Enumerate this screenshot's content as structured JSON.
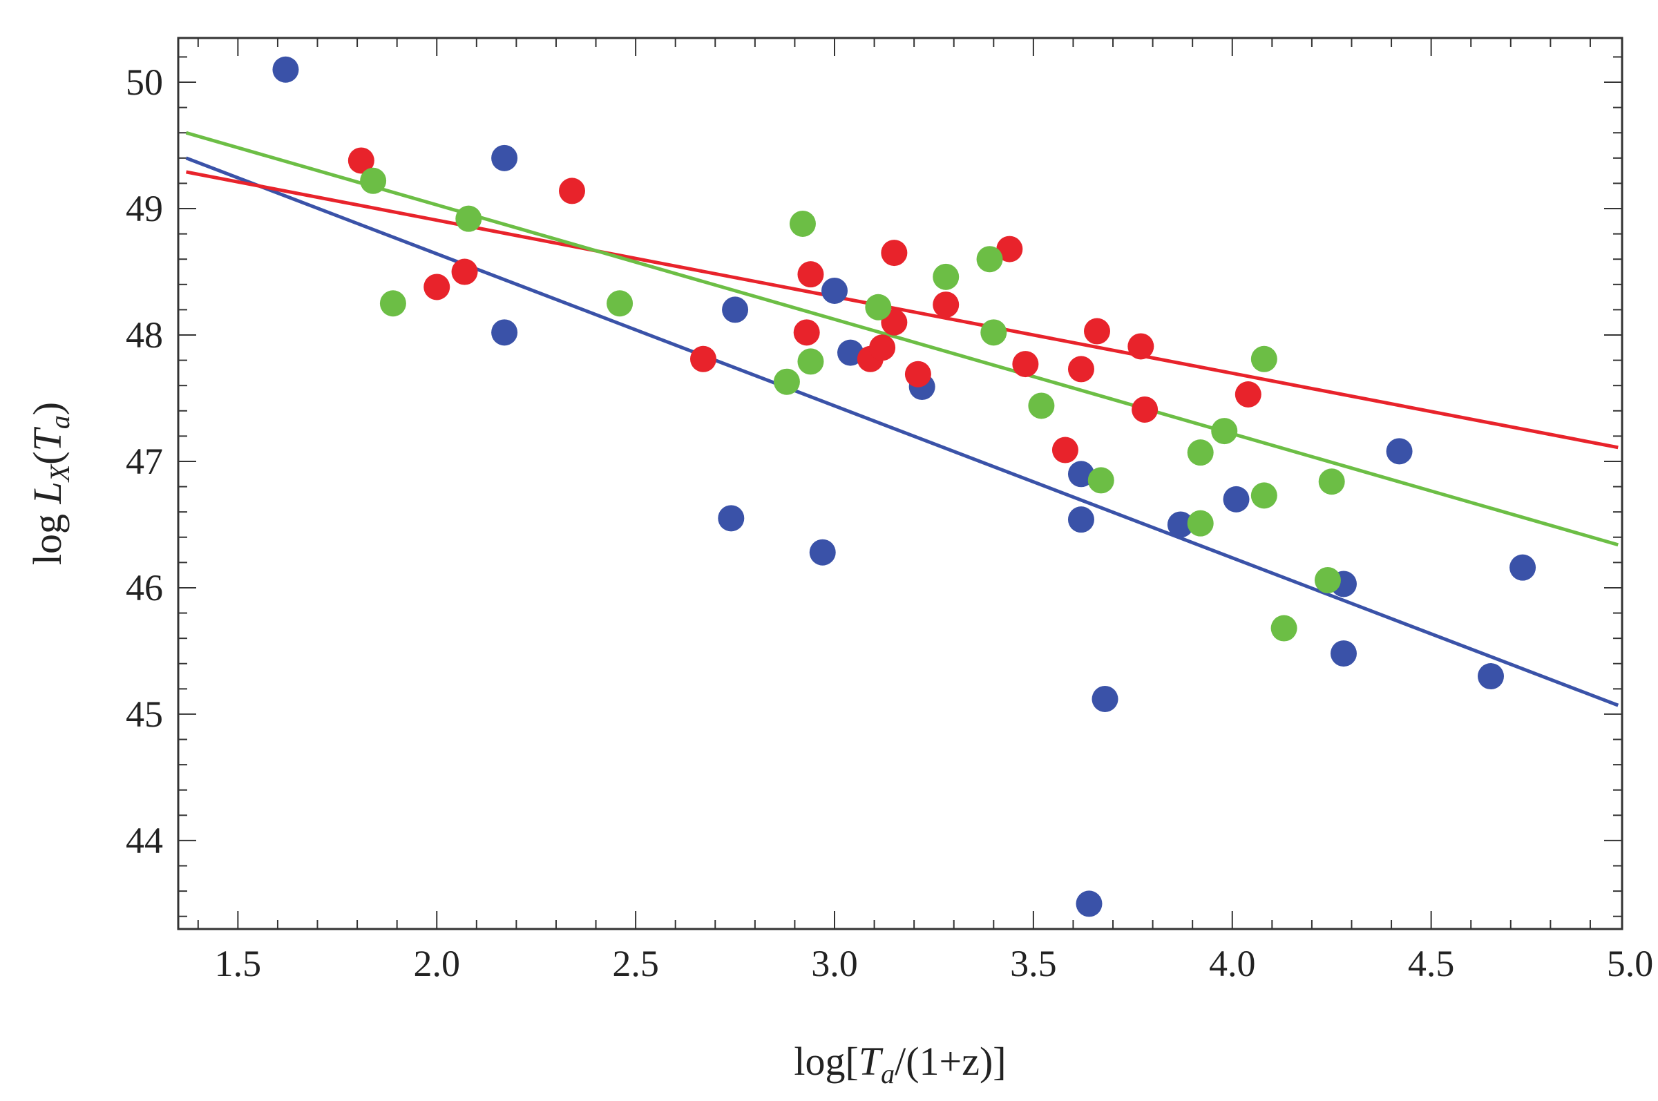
{
  "chart_data": {
    "type": "scatter",
    "title": "",
    "xlabel": "log[T_a/(1+z)]",
    "ylabel": "log L_X(T_a)",
    "xlim": [
      1.35,
      4.98
    ],
    "ylim": [
      43.3,
      50.35
    ],
    "x_ticks": [
      "1.5",
      "2.0",
      "2.5",
      "3.0",
      "3.5",
      "4.0",
      "4.5",
      "5.0"
    ],
    "y_ticks": [
      "44",
      "45",
      "46",
      "47",
      "48",
      "49",
      "50"
    ],
    "grid": false,
    "series": [
      {
        "name": "blue",
        "color": "#3a52a8",
        "points": [
          [
            1.62,
            50.1
          ],
          [
            2.17,
            49.4
          ],
          [
            2.17,
            48.02
          ],
          [
            2.75,
            48.2
          ],
          [
            2.74,
            46.55
          ],
          [
            2.97,
            46.28
          ],
          [
            3.0,
            48.35
          ],
          [
            3.04,
            47.86
          ],
          [
            3.22,
            47.59
          ],
          [
            3.62,
            46.9
          ],
          [
            3.62,
            46.54
          ],
          [
            3.64,
            43.5
          ],
          [
            3.68,
            45.12
          ],
          [
            3.87,
            46.5
          ],
          [
            4.01,
            46.7
          ],
          [
            4.28,
            46.03
          ],
          [
            4.28,
            45.48
          ],
          [
            4.42,
            47.08
          ],
          [
            4.65,
            45.3
          ],
          [
            4.73,
            46.16
          ]
        ],
        "fit": [
          [
            1.37,
            49.4
          ],
          [
            4.97,
            45.07
          ]
        ]
      },
      {
        "name": "red",
        "color": "#e8232b",
        "points": [
          [
            1.81,
            49.38
          ],
          [
            2.0,
            48.38
          ],
          [
            2.07,
            48.5
          ],
          [
            2.34,
            49.14
          ],
          [
            2.67,
            47.81
          ],
          [
            2.93,
            48.02
          ],
          [
            2.94,
            48.48
          ],
          [
            3.09,
            47.81
          ],
          [
            3.12,
            47.9
          ],
          [
            3.15,
            48.1
          ],
          [
            3.15,
            48.65
          ],
          [
            3.21,
            47.69
          ],
          [
            3.28,
            48.24
          ],
          [
            3.44,
            48.68
          ],
          [
            3.48,
            47.77
          ],
          [
            3.58,
            47.09
          ],
          [
            3.62,
            47.73
          ],
          [
            3.66,
            48.03
          ],
          [
            3.77,
            47.91
          ],
          [
            3.78,
            47.41
          ],
          [
            4.04,
            47.53
          ]
        ],
        "fit": [
          [
            1.37,
            49.29
          ],
          [
            4.97,
            47.11
          ]
        ]
      },
      {
        "name": "green",
        "color": "#6cbe45",
        "points": [
          [
            1.84,
            49.22
          ],
          [
            1.89,
            48.25
          ],
          [
            2.08,
            48.92
          ],
          [
            2.46,
            48.25
          ],
          [
            2.88,
            47.63
          ],
          [
            2.92,
            48.88
          ],
          [
            2.94,
            47.79
          ],
          [
            3.11,
            48.22
          ],
          [
            3.28,
            48.46
          ],
          [
            3.39,
            48.6
          ],
          [
            3.4,
            48.02
          ],
          [
            3.52,
            47.44
          ],
          [
            3.67,
            46.85
          ],
          [
            3.92,
            47.07
          ],
          [
            3.92,
            46.51
          ],
          [
            3.98,
            47.24
          ],
          [
            4.08,
            46.73
          ],
          [
            4.08,
            47.81
          ],
          [
            4.13,
            45.68
          ],
          [
            4.24,
            46.06
          ],
          [
            4.25,
            46.84
          ]
        ],
        "fit": [
          [
            1.37,
            49.6
          ],
          [
            4.97,
            46.34
          ]
        ]
      }
    ]
  }
}
